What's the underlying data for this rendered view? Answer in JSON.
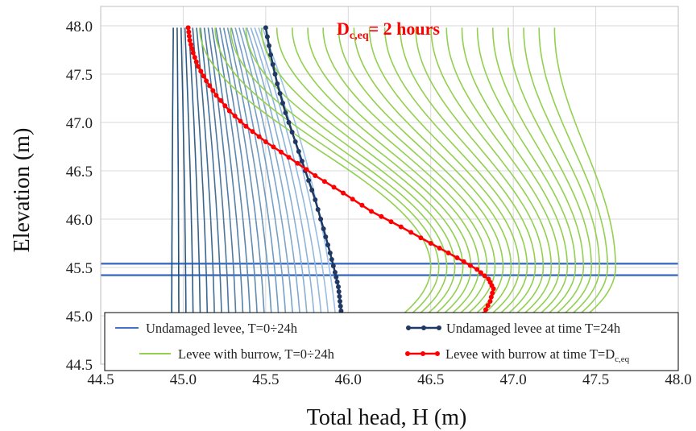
{
  "chart_data": {
    "type": "line",
    "xlabel": "Total head, H (m)",
    "ylabel": "Elevation (m)",
    "xlim": [
      44.5,
      48.0
    ],
    "ylim": [
      44.5,
      48.2
    ],
    "xticks": [
      "44.5",
      "45.0",
      "45.5",
      "46.0",
      "46.5",
      "47.0",
      "47.5",
      "48.0"
    ],
    "yticks": [
      "44.5",
      "45.0",
      "45.5",
      "46.0",
      "46.5",
      "47.0",
      "47.5",
      "48.0"
    ],
    "grid": true,
    "annotation": {
      "main": "D",
      "subscript": "c,eq",
      "rest": "= 2 hours",
      "color": "#ff0000"
    },
    "reference_lines_y": [
      45.42,
      45.54
    ],
    "legend": {
      "placement": "bottom",
      "items": [
        {
          "label": "Undamaged levee, T=0÷24h",
          "marker": false,
          "color": "#4472c4"
        },
        {
          "label": "Undamaged levee at time T=24h",
          "marker": true,
          "color": "#1f3864"
        },
        {
          "label": "Levee with burrow, T=0÷24h",
          "marker": false,
          "color": "#92d050"
        },
        {
          "label": "Levee with burrow at time T=D",
          "label_sub": "c,eq",
          "marker": true,
          "color": "#ff0000"
        }
      ]
    },
    "families": {
      "undamaged": {
        "count": 24,
        "colors": [
          "#1f4e79",
          "#9dc3e6"
        ],
        "top_x_range": [
          44.94,
          45.48
        ],
        "bottom_x_range": [
          44.93,
          45.94
        ],
        "top_y": 47.98,
        "bottom_y": 44.5
      },
      "burrow": {
        "count": 24,
        "color": "#92d050",
        "top_x_range": [
          45.1,
          47.25
        ],
        "peak_x_range": [
          46.5,
          47.62
        ],
        "peak_y": 45.5,
        "top_y": 47.98,
        "bottom_y": 45.0
      }
    },
    "series": [
      {
        "name": "Undamaged levee at time T=24h",
        "color": "#1f3864",
        "x": [
          45.5,
          45.53,
          45.57,
          45.62,
          45.68,
          45.74,
          45.8,
          45.85,
          45.89,
          45.92,
          45.94,
          45.95,
          45.96
        ],
        "y": [
          47.98,
          47.7,
          47.4,
          47.1,
          46.8,
          46.5,
          46.2,
          45.9,
          45.65,
          45.45,
          45.3,
          45.15,
          45.0
        ]
      },
      {
        "name": "Levee with burrow at time T=D",
        "color": "#ff0000",
        "x": [
          45.03,
          45.04,
          45.06,
          45.09,
          45.14,
          45.2,
          45.28,
          45.38,
          45.5,
          45.64,
          45.8,
          45.97,
          46.14,
          46.32,
          46.5,
          46.66,
          46.78,
          46.85,
          46.88,
          46.86,
          46.82
        ],
        "y": [
          47.98,
          47.85,
          47.72,
          47.58,
          47.43,
          47.28,
          47.12,
          46.96,
          46.8,
          46.64,
          46.45,
          46.27,
          46.08,
          45.92,
          45.75,
          45.6,
          45.48,
          45.38,
          45.28,
          45.15,
          45.02
        ]
      }
    ]
  }
}
